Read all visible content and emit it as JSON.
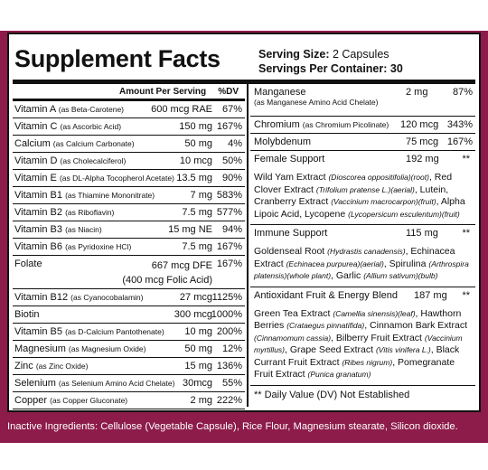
{
  "title": "Supplement Facts",
  "serving_size_label": "Serving Size:",
  "serving_size_value": "2 Capsules",
  "servings_per_container_label": "Servings Per Container:",
  "servings_per_container_value": "30",
  "header": {
    "amount": "Amount Per Serving",
    "dv": "%DV"
  },
  "left_rows": [
    {
      "name": "Vitamin A",
      "source": "(as Beta-Carotene)",
      "amount": "600 mcg RAE",
      "dv": "67%"
    },
    {
      "name": "Vitamin C",
      "source": "(as Ascorbic Acid)",
      "amount": "150 mg",
      "dv": "167%"
    },
    {
      "name": "Calcium",
      "source": "(as Calcium Carbonate)",
      "amount": "50 mg",
      "dv": "4%"
    },
    {
      "name": "Vitamin D",
      "source": "(as Cholecalciferol)",
      "amount": "10 mcg",
      "dv": "50%"
    },
    {
      "name": "Vitamin E",
      "source": "(as DL-Alpha Tocopherol Acetate)",
      "amount": "13.5 mg",
      "dv": "90%"
    },
    {
      "name": "Vitamin B1",
      "source": "(as Thiamine Mononitrate)",
      "amount": "7 mg",
      "dv": "583%"
    },
    {
      "name": "Vitamin B2",
      "source": "(as Riboflavin)",
      "amount": "7.5 mg",
      "dv": "577%"
    },
    {
      "name": "Vitamin B3",
      "source": "(as Niacin)",
      "amount": "15 mg NE",
      "dv": "94%"
    },
    {
      "name": "Vitamin B6",
      "source": "(as Pyridoxine HCl)",
      "amount": "7.5 mg",
      "dv": "167%"
    },
    {
      "name": "Folate",
      "source": "",
      "amount": "667 mcg DFE",
      "amount2": "(400 mcg Folic Acid)",
      "dv": "167%"
    },
    {
      "name": "Vitamin B12",
      "source": "(as Cyanocobalamin)",
      "amount": "27 mcg",
      "dv": "1125%"
    },
    {
      "name": "Biotin",
      "source": "",
      "amount": "300 mcg",
      "dv": "1000%"
    },
    {
      "name": "Vitamin B5",
      "source": "(as D-Calcium Pantothenate)",
      "amount": "10 mg",
      "dv": "200%"
    },
    {
      "name": "Magnesium",
      "source": "(as Magnesium Oxide)",
      "amount": "50 mg",
      "dv": "12%"
    },
    {
      "name": "Zinc",
      "source": "(as Zinc Oxide)",
      "amount": "15 mg",
      "dv": "136%"
    },
    {
      "name": "Selenium",
      "source": "(as Selenium Amino Acid Chelate)",
      "amount": "30mcg",
      "dv": "55%"
    },
    {
      "name": "Copper",
      "source": "(as Copper Gluconate)",
      "amount": "2 mg",
      "dv": "222%"
    }
  ],
  "right": {
    "manganese": {
      "name": "Manganese",
      "source": "(as Manganese Amino Acid Chelate)",
      "amount": "2 mg",
      "dv": "87%"
    },
    "chromium": {
      "name": "Chromium",
      "source": "(as Chromium Picolinate)",
      "amount": "120 mcg",
      "dv": "343%"
    },
    "molybdenum": {
      "name": "Molybdenum",
      "amount": "75 mcg",
      "dv": "167%"
    },
    "female": {
      "name": "Female Support",
      "amount": "192 mg",
      "dv": "**"
    },
    "immune": {
      "name": "Immune Support",
      "amount": "115 mg",
      "dv": "**"
    },
    "antioxidant": {
      "name": "Antioxidant Fruit & Energy Blend",
      "amount": "187 mg",
      "dv": "**"
    },
    "footnote": "** Daily Value (DV) Not Established"
  },
  "inactive": "Inactive Ingredients: Cellulose (Vegetable Capsule), Rice Flour, Magnesium stearate, Silicon dioxide."
}
